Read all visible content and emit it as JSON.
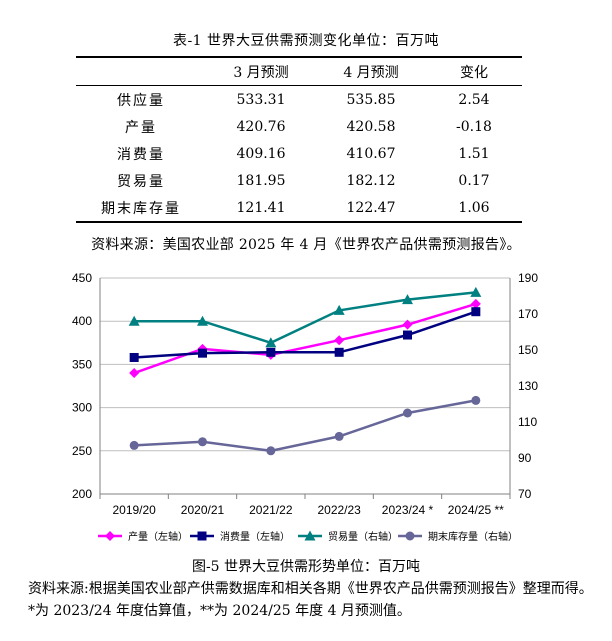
{
  "table": {
    "title": "表-1 世界大豆供需预测变化单位：百万吨",
    "headers": [
      "",
      "3 月预测",
      "4 月预测",
      "变化"
    ],
    "rows": [
      {
        "label": "供应量",
        "mar": "533.31",
        "apr": "535.85",
        "change": "2.54"
      },
      {
        "label": "产量",
        "mar": "420.76",
        "apr": "420.58",
        "change": "-0.18"
      },
      {
        "label": "消费量",
        "mar": "409.16",
        "apr": "410.67",
        "change": "1.51"
      },
      {
        "label": "贸易量",
        "mar": "181.95",
        "apr": "182.12",
        "change": "0.17"
      },
      {
        "label": "期末库存量",
        "mar": "121.41",
        "apr": "122.47",
        "change": "1.06"
      }
    ],
    "source": "资料来源：美国农业部 2025 年 4 月《世界农产品供需预测报告》。"
  },
  "figure": {
    "title": "图-5 世界大豆供需形势单位：百万吨",
    "source": "资料来源:根据美国农业部产供需数据库和相关各期《世界农产品供需预测报告》整理而得。*为 2023/24 年度估算值，**为 2024/25 年度 4 月预测值。"
  },
  "chart_data": {
    "type": "line",
    "categories": [
      "2019/20",
      "2020/21",
      "2021/22",
      "2022/23",
      "2023/24 *",
      "2024/25 **"
    ],
    "left_axis": {
      "min": 200,
      "max": 450,
      "ticks": [
        200,
        250,
        300,
        350,
        400,
        450
      ]
    },
    "right_axis": {
      "min": 70,
      "max": 190,
      "ticks": [
        70,
        90,
        110,
        130,
        150,
        170,
        190
      ]
    },
    "grid": "horizontal",
    "legend_position": "bottom",
    "series": [
      {
        "name": "产量（左轴）",
        "axis": "left",
        "color": "#ff00ff",
        "marker": "diamond",
        "values": [
          340,
          368,
          361,
          378,
          396,
          420
        ]
      },
      {
        "name": "消费量（左轴）",
        "axis": "left",
        "color": "#000080",
        "marker": "square",
        "values": [
          358,
          363,
          364,
          364,
          384,
          411
        ]
      },
      {
        "name": "贸易量（右轴）",
        "axis": "right",
        "color": "#008080",
        "marker": "triangle",
        "values": [
          166,
          166,
          154,
          172,
          178,
          182
        ]
      },
      {
        "name": "期末库存量（右轴）",
        "axis": "right",
        "color": "#666699",
        "marker": "circle",
        "values": [
          97,
          99,
          94,
          102,
          115,
          122
        ]
      }
    ]
  }
}
